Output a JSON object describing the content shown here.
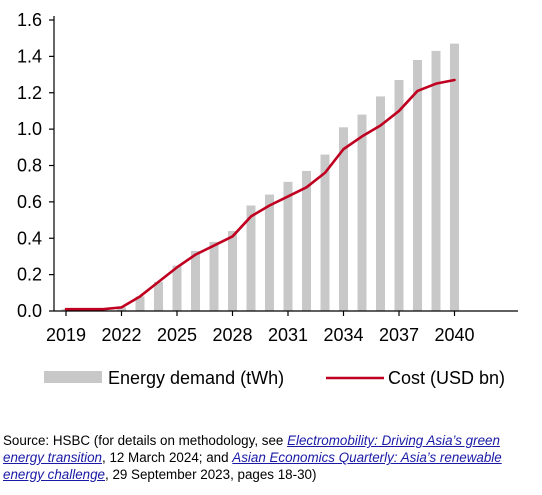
{
  "chart_data": {
    "type": "bar",
    "x": [
      2019,
      2020,
      2021,
      2022,
      2023,
      2024,
      2025,
      2026,
      2027,
      2028,
      2029,
      2030,
      2031,
      2032,
      2033,
      2034,
      2035,
      2036,
      2037,
      2038,
      2039,
      2040
    ],
    "x_tick_labels": [
      "2019",
      "2022",
      "2025",
      "2028",
      "2031",
      "2034",
      "2037",
      "2040"
    ],
    "y_tick_labels": [
      "0.0",
      "0.2",
      "0.4",
      "0.6",
      "0.8",
      "1.0",
      "1.2",
      "1.4",
      "1.6"
    ],
    "ylim": [
      0,
      1.6
    ],
    "grid": false,
    "legend_position": "bottom",
    "series": [
      {
        "name": "Energy demand (tWh)",
        "type": "bar",
        "color": "#c8c8c8",
        "values": [
          0.01,
          0.01,
          0.01,
          0.02,
          0.08,
          0.16,
          0.25,
          0.33,
          0.38,
          0.44,
          0.58,
          0.64,
          0.71,
          0.77,
          0.86,
          1.01,
          1.08,
          1.18,
          1.27,
          1.38,
          1.43,
          1.47
        ]
      },
      {
        "name": "Cost (USD bn)",
        "type": "line",
        "color": "#c00020",
        "values": [
          0.01,
          0.01,
          0.01,
          0.02,
          0.08,
          0.16,
          0.24,
          0.31,
          0.36,
          0.41,
          0.52,
          0.58,
          0.63,
          0.68,
          0.76,
          0.89,
          0.96,
          1.02,
          1.1,
          1.21,
          1.25,
          1.27
        ]
      }
    ]
  },
  "source": {
    "prefix": "Source: HSBC (for details on methodology, see ",
    "link1": "Electromobility: Driving Asia’s green energy transition",
    "middle": ", 12 March 2024; and ",
    "link2": "Asian Economics Quarterly: Asia’s renewable energy challenge",
    "suffix": ", 29 September 2023, pages 18-30)"
  },
  "colors": {
    "axis": "#000000",
    "bar": "#c8c8c8",
    "line": "#c00020",
    "link": "#1a1aa6"
  }
}
